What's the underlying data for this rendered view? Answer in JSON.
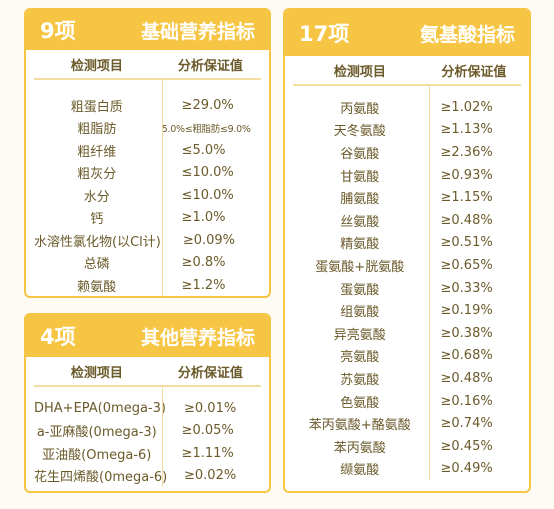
{
  "basic": {
    "count": "9项",
    "title": "基础营养指标",
    "col_item": "检测项目",
    "col_value": "分析保证值",
    "rows": [
      {
        "item": "粗蛋白质",
        "value": "≥29.0%"
      },
      {
        "item": "粗脂肪",
        "value": "5.0%≤粗脂肪≤9.0%"
      },
      {
        "item": "粗纤维",
        "value": "≤5.0%"
      },
      {
        "item": "粗灰分",
        "value": "≤10.0%"
      },
      {
        "item": "水分",
        "value": "≤10.0%"
      },
      {
        "item": "钙",
        "value": "≥1.0%"
      },
      {
        "item": "水溶性氯化物(以Cl计)",
        "value": "≥0.09%"
      },
      {
        "item": "总磷",
        "value": "≥0.8%"
      },
      {
        "item": "赖氨酸",
        "value": "≥1.2%"
      }
    ]
  },
  "other": {
    "count": "4项",
    "title": "其他营养指标",
    "col_item": "检测项目",
    "col_value": "分析保证值",
    "rows": [
      {
        "item": "DHA+EPA(0mega-3)",
        "value": "≥0.01%"
      },
      {
        "item": "a-亚麻酸(0mega-3)",
        "value": "≥0.05%"
      },
      {
        "item": "亚油酸(Omega-6)",
        "value": "≥1.11%"
      },
      {
        "item": "花生四烯酸(0mega-6)",
        "value": "≥0.02%"
      }
    ]
  },
  "amino": {
    "count": "17项",
    "title": "氨基酸指标",
    "col_item": "检测项目",
    "col_value": "分析保证值",
    "rows": [
      {
        "item": "丙氨酸",
        "value": "≥1.02%"
      },
      {
        "item": "天冬氨酸",
        "value": "≥1.13%"
      },
      {
        "item": "谷氨酸",
        "value": "≥2.36%"
      },
      {
        "item": "甘氨酸",
        "value": "≥0.93%"
      },
      {
        "item": "脯氨酸",
        "value": "≥1.15%"
      },
      {
        "item": "丝氨酸",
        "value": "≥0.48%"
      },
      {
        "item": "精氨酸",
        "value": "≥0.51%"
      },
      {
        "item": "蛋氨酸+胱氨酸",
        "value": "≥0.65%"
      },
      {
        "item": "蛋氨酸",
        "value": "≥0.33%"
      },
      {
        "item": "组氨酸",
        "value": "≥0.19%"
      },
      {
        "item": "异亮氨酸",
        "value": "≥0.38%"
      },
      {
        "item": "亮氨酸",
        "value": "≥0.68%"
      },
      {
        "item": "苏氨酸",
        "value": "≥0.48%"
      },
      {
        "item": "色氨酸",
        "value": "≥0.16%"
      },
      {
        "item": "苯丙氨酸+酪氨酸",
        "value": "≥0.74%"
      },
      {
        "item": "苯丙氨酸",
        "value": "≥0.45%"
      },
      {
        "item": "缬氨酸",
        "value": "≥0.49%"
      }
    ]
  }
}
